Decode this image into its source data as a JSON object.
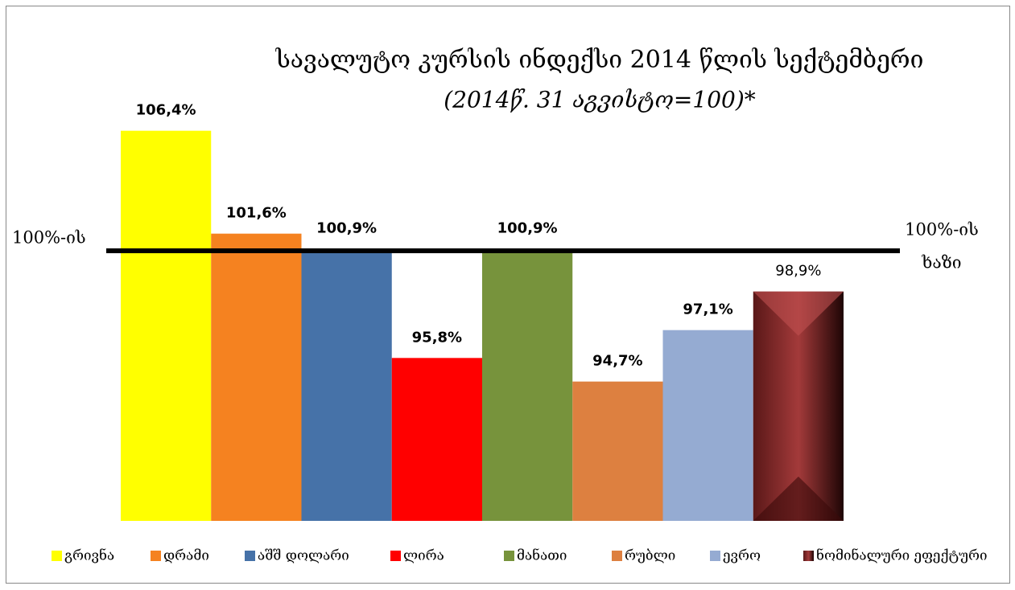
{
  "chart_data": {
    "type": "bar",
    "title": "სავალუტო კურსის ინდექსი 2014 წლის სექტემბერი",
    "subtitle": "(2014წ. 31 აგვისტო=100)*",
    "categories": [
      "გრივნა",
      "დრამი",
      "აშშ დოლარი",
      "ლირა",
      "მანათი",
      "რუბლი",
      "ევრო",
      "ნომინალური ეფექტური"
    ],
    "values": [
      106.4,
      101.6,
      100.9,
      95.8,
      100.9,
      94.7,
      97.1,
      98.9
    ],
    "value_labels": [
      "106,4%",
      "101,6%",
      "100,9%",
      "95,8%",
      "100,9%",
      "94,7%",
      "97,1%",
      "98,9%"
    ],
    "colors": [
      "#ffff00",
      "#f58220",
      "#4672a8",
      "#ff0000",
      "#77933c",
      "#dd8040",
      "#95abd2",
      "#8b2a2a"
    ],
    "ylim": [
      88.2,
      108
    ],
    "annotations": [
      "100%-ის",
      "100%-ის",
      "ხაზი"
    ],
    "legend": "bottom"
  }
}
